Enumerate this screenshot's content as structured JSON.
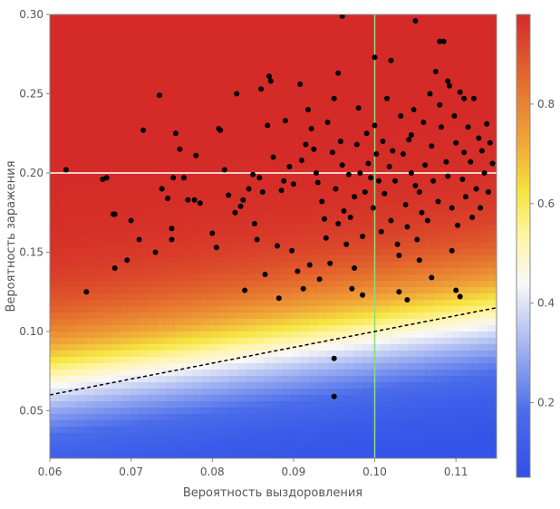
{
  "chart_data": {
    "type": "scatter",
    "title": "",
    "xlabel": "Вероятность выздоровления",
    "ylabel": "Вероятность заражения",
    "xlim": [
      0.06,
      0.115
    ],
    "ylim": [
      0.02,
      0.3
    ],
    "x_ticks": [
      0.06,
      0.07,
      0.08,
      0.09,
      0.1,
      0.11
    ],
    "x_tick_labels": [
      "0.06",
      "0.07",
      "0.08",
      "0.09",
      "0.10",
      "0.11"
    ],
    "y_ticks": [
      0.05,
      0.1,
      0.15,
      0.2,
      0.25,
      0.3
    ],
    "y_tick_labels": [
      "0.05",
      "0.10",
      "0.15",
      "0.20",
      "0.25",
      "0.30"
    ],
    "background_field": "heatmap colored by probability (blue ≈ 0, white ≈ 0.5, yellow, orange, red ≈ 1)",
    "colorbar": {
      "range": [
        0.05,
        0.98
      ],
      "ticks": [
        0.2,
        0.4,
        0.6,
        0.8
      ],
      "tick_labels": [
        "0.2",
        "0.4",
        "0.6",
        "0.8"
      ],
      "stops": [
        {
          "value": 0.05,
          "color": "#3050e8"
        },
        {
          "value": 0.18,
          "color": "#4a6cea"
        },
        {
          "value": 0.32,
          "color": "#a8b8f2"
        },
        {
          "value": 0.44,
          "color": "#f8f8f8"
        },
        {
          "value": 0.54,
          "color": "#fff4a0"
        },
        {
          "value": 0.62,
          "color": "#f6e540"
        },
        {
          "value": 0.72,
          "color": "#f0a838"
        },
        {
          "value": 0.84,
          "color": "#e5702e"
        },
        {
          "value": 0.98,
          "color": "#d42a28"
        }
      ]
    },
    "reference_lines": [
      {
        "name": "horizontal",
        "orientation": "horizontal",
        "y": 0.2,
        "color": "#ffffff"
      },
      {
        "name": "vertical",
        "orientation": "vertical",
        "x": 0.1,
        "color": "#8fdc7c"
      },
      {
        "name": "dashed-threshold",
        "style": "dashed",
        "color": "#000000",
        "x": [
          0.06,
          0.115
        ],
        "y": [
          0.06,
          0.115
        ]
      }
    ],
    "points": [
      [
        0.062,
        0.202
      ],
      [
        0.0645,
        0.125
      ],
      [
        0.0665,
        0.196
      ],
      [
        0.067,
        0.197
      ],
      [
        0.0678,
        0.174
      ],
      [
        0.068,
        0.174
      ],
      [
        0.068,
        0.14
      ],
      [
        0.0695,
        0.145
      ],
      [
        0.07,
        0.17
      ],
      [
        0.071,
        0.158
      ],
      [
        0.0715,
        0.227
      ],
      [
        0.073,
        0.15
      ],
      [
        0.0735,
        0.249
      ],
      [
        0.0738,
        0.19
      ],
      [
        0.0745,
        0.184
      ],
      [
        0.075,
        0.165
      ],
      [
        0.075,
        0.158
      ],
      [
        0.0752,
        0.197
      ],
      [
        0.0755,
        0.225
      ],
      [
        0.076,
        0.215
      ],
      [
        0.0765,
        0.197
      ],
      [
        0.077,
        0.183
      ],
      [
        0.0778,
        0.183
      ],
      [
        0.078,
        0.211
      ],
      [
        0.0785,
        0.181
      ],
      [
        0.08,
        0.162
      ],
      [
        0.0805,
        0.153
      ],
      [
        0.0808,
        0.228
      ],
      [
        0.081,
        0.227
      ],
      [
        0.0815,
        0.202
      ],
      [
        0.082,
        0.186
      ],
      [
        0.0828,
        0.175
      ],
      [
        0.083,
        0.25
      ],
      [
        0.0835,
        0.179
      ],
      [
        0.0838,
        0.183
      ],
      [
        0.084,
        0.126
      ],
      [
        0.0845,
        0.19
      ],
      [
        0.085,
        0.199
      ],
      [
        0.0852,
        0.168
      ],
      [
        0.0855,
        0.158
      ],
      [
        0.0858,
        0.197
      ],
      [
        0.086,
        0.253
      ],
      [
        0.0862,
        0.188
      ],
      [
        0.0865,
        0.136
      ],
      [
        0.0868,
        0.23
      ],
      [
        0.087,
        0.261
      ],
      [
        0.0872,
        0.258
      ],
      [
        0.0875,
        0.21
      ],
      [
        0.088,
        0.154
      ],
      [
        0.0882,
        0.121
      ],
      [
        0.0885,
        0.189
      ],
      [
        0.0888,
        0.195
      ],
      [
        0.089,
        0.233
      ],
      [
        0.0895,
        0.204
      ],
      [
        0.0898,
        0.151
      ],
      [
        0.09,
        0.193
      ],
      [
        0.0905,
        0.138
      ],
      [
        0.0908,
        0.256
      ],
      [
        0.091,
        0.208
      ],
      [
        0.0912,
        0.127
      ],
      [
        0.0915,
        0.218
      ],
      [
        0.0918,
        0.24
      ],
      [
        0.092,
        0.142
      ],
      [
        0.0922,
        0.228
      ],
      [
        0.0925,
        0.215
      ],
      [
        0.0928,
        0.2
      ],
      [
        0.093,
        0.194
      ],
      [
        0.0932,
        0.133
      ],
      [
        0.0935,
        0.182
      ],
      [
        0.0938,
        0.171
      ],
      [
        0.094,
        0.159
      ],
      [
        0.0942,
        0.232
      ],
      [
        0.0945,
        0.143
      ],
      [
        0.0948,
        0.213
      ],
      [
        0.095,
        0.247
      ],
      [
        0.0952,
        0.19
      ],
      [
        0.0955,
        0.263
      ],
      [
        0.0958,
        0.22
      ],
      [
        0.096,
        0.205
      ],
      [
        0.0962,
        0.176
      ],
      [
        0.0965,
        0.155
      ],
      [
        0.0968,
        0.199
      ],
      [
        0.097,
        0.172
      ],
      [
        0.0972,
        0.127
      ],
      [
        0.0975,
        0.185
      ],
      [
        0.0978,
        0.218
      ],
      [
        0.098,
        0.241
      ],
      [
        0.0982,
        0.2
      ],
      [
        0.0985,
        0.16
      ],
      [
        0.0988,
        0.188
      ],
      [
        0.099,
        0.225
      ],
      [
        0.0992,
        0.206
      ],
      [
        0.0995,
        0.197
      ],
      [
        0.0998,
        0.178
      ],
      [
        0.1,
        0.23
      ],
      [
        0.1002,
        0.212
      ],
      [
        0.1005,
        0.195
      ],
      [
        0.1008,
        0.163
      ],
      [
        0.101,
        0.22
      ],
      [
        0.1012,
        0.187
      ],
      [
        0.1015,
        0.247
      ],
      [
        0.1018,
        0.204
      ],
      [
        0.102,
        0.17
      ],
      [
        0.1022,
        0.214
      ],
      [
        0.1025,
        0.195
      ],
      [
        0.1028,
        0.155
      ],
      [
        0.103,
        0.125
      ],
      [
        0.1032,
        0.236
      ],
      [
        0.1035,
        0.212
      ],
      [
        0.1038,
        0.18
      ],
      [
        0.104,
        0.166
      ],
      [
        0.1042,
        0.221
      ],
      [
        0.1045,
        0.2
      ],
      [
        0.1048,
        0.24
      ],
      [
        0.105,
        0.192
      ],
      [
        0.1052,
        0.158
      ],
      [
        0.1055,
        0.188
      ],
      [
        0.1058,
        0.175
      ],
      [
        0.106,
        0.232
      ],
      [
        0.1062,
        0.205
      ],
      [
        0.1065,
        0.17
      ],
      [
        0.1068,
        0.25
      ],
      [
        0.107,
        0.217
      ],
      [
        0.1072,
        0.195
      ],
      [
        0.1075,
        0.264
      ],
      [
        0.1078,
        0.182
      ],
      [
        0.108,
        0.243
      ],
      [
        0.1082,
        0.229
      ],
      [
        0.1085,
        0.283
      ],
      [
        0.1088,
        0.207
      ],
      [
        0.109,
        0.198
      ],
      [
        0.1092,
        0.255
      ],
      [
        0.1095,
        0.178
      ],
      [
        0.1098,
        0.236
      ],
      [
        0.11,
        0.219
      ],
      [
        0.1102,
        0.167
      ],
      [
        0.1105,
        0.251
      ],
      [
        0.1108,
        0.196
      ],
      [
        0.111,
        0.213
      ],
      [
        0.1112,
        0.185
      ],
      [
        0.1115,
        0.229
      ],
      [
        0.1118,
        0.207
      ],
      [
        0.112,
        0.172
      ],
      [
        0.1122,
        0.247
      ],
      [
        0.1125,
        0.19
      ],
      [
        0.1128,
        0.222
      ],
      [
        0.113,
        0.178
      ],
      [
        0.1132,
        0.214
      ],
      [
        0.1135,
        0.2
      ],
      [
        0.1138,
        0.231
      ],
      [
        0.114,
        0.188
      ],
      [
        0.1142,
        0.219
      ],
      [
        0.1145,
        0.206
      ],
      [
        0.11,
        0.126
      ],
      [
        0.1105,
        0.122
      ],
      [
        0.095,
        0.083
      ],
      [
        0.095,
        0.059
      ],
      [
        0.096,
        0.299
      ],
      [
        0.1,
        0.273
      ],
      [
        0.102,
        0.271
      ],
      [
        0.105,
        0.296
      ],
      [
        0.108,
        0.283
      ],
      [
        0.109,
        0.258
      ],
      [
        0.111,
        0.247
      ],
      [
        0.1045,
        0.224
      ],
      [
        0.103,
        0.148
      ],
      [
        0.1055,
        0.145
      ],
      [
        0.107,
        0.134
      ],
      [
        0.1095,
        0.151
      ],
      [
        0.104,
        0.12
      ],
      [
        0.0985,
        0.123
      ],
      [
        0.0975,
        0.14
      ],
      [
        0.0955,
        0.168
      ]
    ]
  }
}
